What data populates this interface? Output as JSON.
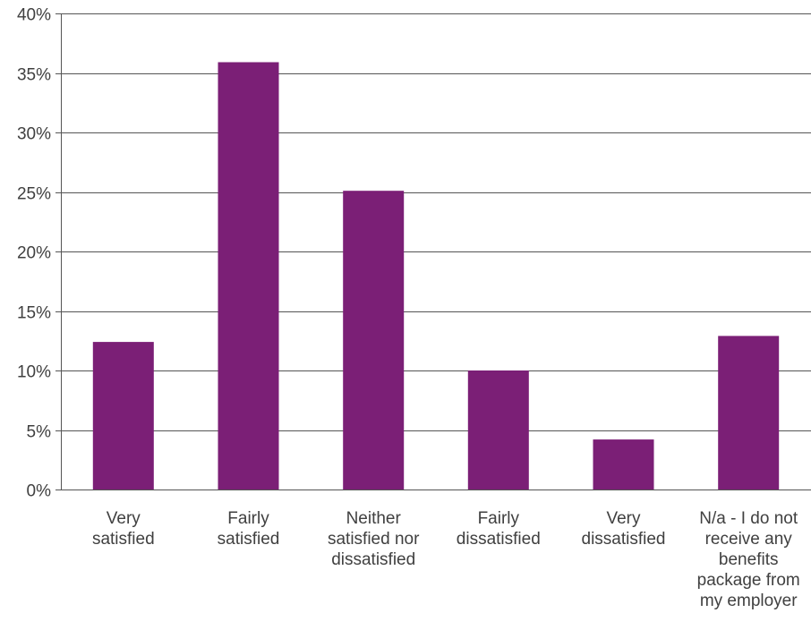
{
  "chart_data": {
    "type": "bar",
    "title": "",
    "xlabel": "",
    "ylabel": "",
    "categories": [
      [
        "Very",
        "satisfied"
      ],
      [
        "Fairly",
        "satisfied"
      ],
      [
        "Neither",
        "satisfied nor",
        "dissatisfied"
      ],
      [
        "Fairly",
        "dissatisfied"
      ],
      [
        "Very",
        "dissatisfied"
      ],
      [
        "N/a - I do not",
        "receive any",
        "benefits",
        "package from",
        "my employer"
      ]
    ],
    "values": [
      12.4,
      35.9,
      25.1,
      10.0,
      4.2,
      12.9
    ],
    "value_unit": "%",
    "ylim": [
      0,
      40
    ],
    "yticks": [
      0,
      5,
      10,
      15,
      20,
      25,
      30,
      35,
      40
    ],
    "ytick_labels": [
      "0%",
      "5%",
      "10%",
      "15%",
      "20%",
      "25%",
      "30%",
      "35%",
      "40%"
    ],
    "grid": true,
    "legend": "none",
    "bar_color": "#7b1f76"
  }
}
